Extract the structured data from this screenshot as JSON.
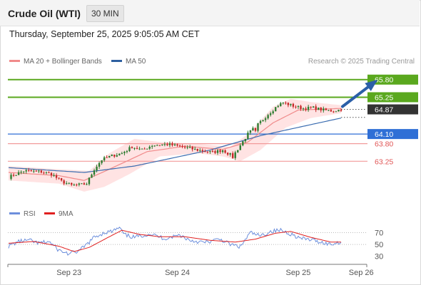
{
  "header": {
    "instrument": "Crude Oil (WTI)",
    "timeframe": "30 MIN"
  },
  "timestamp": "Thursday, September 25, 2025 9:05:05 AM CET",
  "legend": {
    "ma20": "MA 20 + Bollinger Bands",
    "ma50": "MA 50",
    "credit": "Research © 2025 Trading Central"
  },
  "rsi_legend": {
    "rsi": "RSI",
    "ma9": "9MA"
  },
  "colors": {
    "up_candle": "#2e7d32",
    "down_candle": "#c62828",
    "ma20": "#f08a8a",
    "bollinger_fill": "#ffd9d9",
    "ma50": "#3a6cb0",
    "resistance": "#5aa81e",
    "pivot": "#2f6fd6",
    "support": "#f29a9a",
    "current_price_tag": "#333333",
    "arrow": "#2b5fa8",
    "rsi_line": "#6d8fdc",
    "rsi_ma": "#e02020"
  },
  "chart_data": [
    {
      "type": "candlestick",
      "title": "Crude Oil (WTI) 30 MIN",
      "x_labels": [
        "Sep 23",
        "Sep 24",
        "Sep 25",
        "Sep 26"
      ],
      "ylim": [
        62.5,
        65.95
      ],
      "levels": [
        {
          "value": 65.8,
          "label": "65.80",
          "kind": "resistance"
        },
        {
          "value": 65.25,
          "label": "65.25",
          "kind": "resistance"
        },
        {
          "value": 64.87,
          "label": "64.87",
          "kind": "current"
        },
        {
          "value": 64.1,
          "label": "64.10",
          "kind": "pivot"
        },
        {
          "value": 63.8,
          "label": "63.80",
          "kind": "support"
        },
        {
          "value": 63.25,
          "label": "63.25",
          "kind": "support"
        }
      ],
      "anchors": [
        [
          0,
          62.75
        ],
        [
          6,
          62.95
        ],
        [
          13,
          62.92
        ],
        [
          17,
          62.85
        ],
        [
          21,
          62.62
        ],
        [
          25,
          62.5
        ],
        [
          29,
          62.52
        ],
        [
          31,
          62.55
        ],
        [
          34,
          63.0
        ],
        [
          37,
          63.3
        ],
        [
          41,
          63.42
        ],
        [
          45,
          63.5
        ],
        [
          49,
          63.7
        ],
        [
          53,
          63.6
        ],
        [
          57,
          63.75
        ],
        [
          63,
          63.78
        ],
        [
          69,
          63.7
        ],
        [
          75,
          63.6
        ],
        [
          81,
          63.53
        ],
        [
          85,
          63.6
        ],
        [
          89,
          63.4
        ],
        [
          92,
          63.75
        ],
        [
          95,
          64.1
        ],
        [
          99,
          64.4
        ],
        [
          103,
          64.72
        ],
        [
          107,
          65.0
        ],
        [
          109,
          65.08
        ],
        [
          113,
          64.98
        ],
        [
          117,
          64.9
        ],
        [
          121,
          64.92
        ],
        [
          125,
          64.85
        ],
        [
          129,
          64.82
        ],
        [
          132,
          64.87
        ]
      ],
      "ma50": [
        [
          0,
          63.05
        ],
        [
          30,
          62.9
        ],
        [
          50,
          63.1
        ],
        [
          80,
          63.6
        ],
        [
          100,
          64.05
        ],
        [
          132,
          64.6
        ]
      ],
      "ma20": [
        [
          0,
          62.9
        ],
        [
          20,
          62.8
        ],
        [
          30,
          62.65
        ],
        [
          40,
          63.0
        ],
        [
          55,
          63.55
        ],
        [
          70,
          63.72
        ],
        [
          85,
          63.62
        ],
        [
          95,
          63.85
        ],
        [
          105,
          64.45
        ],
        [
          115,
          64.85
        ],
        [
          132,
          64.9
        ]
      ],
      "bollinger": {
        "upper": [
          [
            0,
            63.1
          ],
          [
            20,
            63.0
          ],
          [
            32,
            62.95
          ],
          [
            40,
            63.5
          ],
          [
            50,
            63.95
          ],
          [
            60,
            63.85
          ],
          [
            75,
            63.8
          ],
          [
            88,
            63.7
          ],
          [
            95,
            64.1
          ],
          [
            105,
            64.95
          ],
          [
            112,
            65.2
          ],
          [
            120,
            65.1
          ],
          [
            132,
            65.0
          ]
        ],
        "lower": [
          [
            0,
            62.65
          ],
          [
            20,
            62.55
          ],
          [
            30,
            62.3
          ],
          [
            38,
            62.45
          ],
          [
            48,
            62.85
          ],
          [
            60,
            63.4
          ],
          [
            75,
            63.5
          ],
          [
            85,
            63.4
          ],
          [
            92,
            63.25
          ],
          [
            100,
            63.6
          ],
          [
            110,
            64.3
          ],
          [
            120,
            64.6
          ],
          [
            132,
            64.75
          ]
        ]
      },
      "projection": {
        "from": [
          132,
          64.87
        ],
        "to": [
          145,
          65.74
        ]
      }
    },
    {
      "type": "line",
      "title": "RSI",
      "series": [
        {
          "name": "RSI",
          "points": [
            [
              0,
              47
            ],
            [
              4,
              55
            ],
            [
              8,
              57
            ],
            [
              12,
              52
            ],
            [
              16,
              55
            ],
            [
              20,
              40
            ],
            [
              24,
              34
            ],
            [
              28,
              39
            ],
            [
              30,
              46
            ],
            [
              34,
              62
            ],
            [
              38,
              70
            ],
            [
              41,
              72
            ],
            [
              44,
              78
            ],
            [
              46,
              66
            ],
            [
              50,
              62
            ],
            [
              56,
              68
            ],
            [
              62,
              60
            ],
            [
              68,
              66
            ],
            [
              72,
              57
            ],
            [
              78,
              53
            ],
            [
              84,
              59
            ],
            [
              88,
              50
            ],
            [
              92,
              46
            ],
            [
              96,
              70
            ],
            [
              100,
              64
            ],
            [
              104,
              72
            ],
            [
              108,
              74
            ],
            [
              112,
              68
            ],
            [
              116,
              60
            ],
            [
              120,
              58
            ],
            [
              124,
              54
            ],
            [
              128,
              50
            ],
            [
              132,
              55
            ]
          ]
        },
        {
          "name": "9MA",
          "points": [
            [
              0,
              52
            ],
            [
              10,
              55
            ],
            [
              20,
              47
            ],
            [
              26,
              38
            ],
            [
              32,
              45
            ],
            [
              40,
              63
            ],
            [
              45,
              74
            ],
            [
              52,
              67
            ],
            [
              60,
              63
            ],
            [
              70,
              63
            ],
            [
              80,
              57
            ],
            [
              90,
              54
            ],
            [
              98,
              59
            ],
            [
              106,
              69
            ],
            [
              112,
              72
            ],
            [
              120,
              62
            ],
            [
              128,
              54
            ],
            [
              132,
              54
            ]
          ]
        }
      ],
      "ylim": [
        20,
        85
      ],
      "y_ticks": [
        70,
        50,
        30
      ]
    }
  ]
}
